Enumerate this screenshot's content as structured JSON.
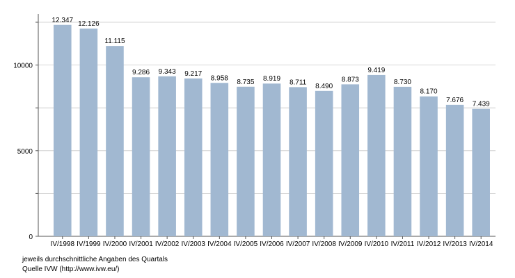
{
  "chart_data": {
    "type": "bar",
    "categories": [
      "IV/1998",
      "IV/1999",
      "IV/2000",
      "IV/2001",
      "IV/2002",
      "IV/2003",
      "IV/2004",
      "IV/2005",
      "IV/2006",
      "IV/2007",
      "IV/2008",
      "IV/2009",
      "IV/2010",
      "IV/2011",
      "IV/2012",
      "IV/2013",
      "IV/2014"
    ],
    "values": [
      12347,
      12126,
      11115,
      9286,
      9343,
      9217,
      8958,
      8735,
      8919,
      8711,
      8490,
      8873,
      9419,
      8730,
      8170,
      7676,
      7439
    ],
    "value_labels": [
      "12.347",
      "12.126",
      "11.115",
      "9.286",
      "9.343",
      "9.217",
      "8.958",
      "8.735",
      "8.919",
      "8.711",
      "8.490",
      "8.873",
      "9.419",
      "8.730",
      "8.170",
      "7.676",
      "7.439"
    ],
    "y_ticks": [
      0,
      5000,
      10000
    ],
    "y_tick_labels": [
      "0",
      "5000",
      "10000"
    ],
    "ylim": [
      0,
      12500
    ],
    "title": "",
    "xlabel": "",
    "ylabel": "",
    "grid": true,
    "bar_color": "#a1b8d1",
    "grid_color": "#c8c8c8"
  },
  "notes": {
    "line1": "jeweils durchschnittliche Angaben des Quartals",
    "line2": "Quelle IVW (http://www.ivw.eu/)"
  }
}
